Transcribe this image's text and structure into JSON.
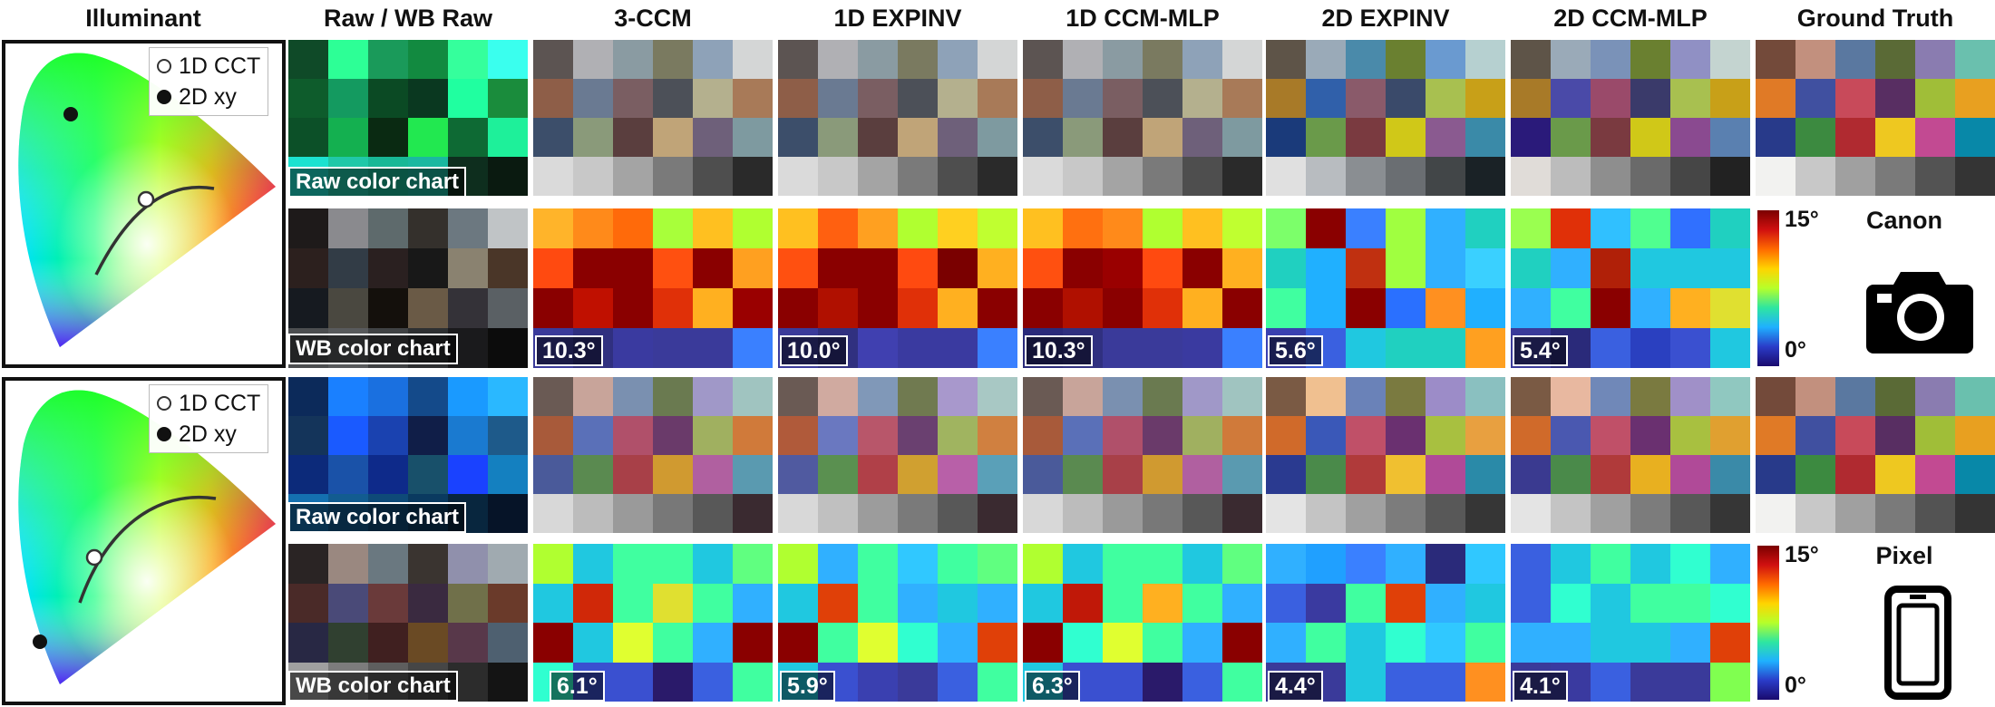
{
  "headers": [
    "Illuminant",
    "Raw / WB Raw",
    "3-CCM",
    "1D EXPINV",
    "1D CCM-MLP",
    "2D EXPINV",
    "2D CCM-MLP",
    "Ground Truth"
  ],
  "illuminant_legend": {
    "cct": "1D CCT",
    "xy": "2D xy"
  },
  "labels": {
    "raw": "Raw color chart",
    "wb": "WB color chart"
  },
  "colorbar": {
    "max": "15°",
    "min": "0°"
  },
  "cameras": [
    {
      "name": "Canon",
      "icon": "camera-icon",
      "errors": [
        "10.3°",
        "10.0°",
        "10.3°",
        "5.6°",
        "5.4°"
      ]
    },
    {
      "name": "Pixel",
      "icon": "smartphone-icon",
      "errors": [
        "6.1°",
        "5.9°",
        "6.3°",
        "4.4°",
        "4.1°"
      ]
    }
  ],
  "palettes": {
    "canon_raw": [
      "#0f4a28",
      "#2dff96",
      "#1a9a5a",
      "#128a40",
      "#35ff9c",
      "#3affee",
      "#0e5c2c",
      "#149a60",
      "#0b4a24",
      "#0a3820",
      "#20ffa0",
      "#1a8c3c",
      "#0c5028",
      "#14b050",
      "#0a2a12",
      "#22e850",
      "#0e6a34",
      "#1ef09a",
      "#1ce2d0",
      "#20c8a8",
      "#18b896",
      "#1ab8a0",
      "#0e2e1e",
      "#0a1a10"
    ],
    "canon_wb": [
      "#1e1a1a",
      "#8a8a8e",
      "#5e6a6c",
      "#34302c",
      "#6c7880",
      "#c0c4c6",
      "#2c201e",
      "#323c46",
      "#2a2020",
      "#181818",
      "#8a8270",
      "#4a3628",
      "#161a20",
      "#4a4840",
      "#14100c",
      "#6a5a46",
      "#343238",
      "#5a6064",
      "#4c4e50",
      "#585a5c",
      "#404244",
      "#2e3032",
      "#1a1a1c",
      "#0c0c0c"
    ],
    "canon_3ccm": [
      "#5c5452",
      "#b0b0b4",
      "#8a9ba2",
      "#7a7a60",
      "#8ea2b8",
      "#d4d6d6",
      "#8e5e48",
      "#6a7a92",
      "#7a5e62",
      "#4c5058",
      "#b4b08e",
      "#a87a58",
      "#3c4e6a",
      "#8a9a7a",
      "#5a3e3e",
      "#c0a478",
      "#6e607a",
      "#7e9aa0",
      "#dadada",
      "#c8c8c8",
      "#a4a4a4",
      "#7a7a7a",
      "#4e4e4e",
      "#2a2a2a"
    ],
    "canon_1dexp": [
      "#5c5452",
      "#b0b0b4",
      "#8a9ba2",
      "#7a7a60",
      "#8ea2b8",
      "#d4d6d6",
      "#8e5e48",
      "#6a7a92",
      "#7a5e62",
      "#4c5058",
      "#b4b08e",
      "#a87a58",
      "#3c4e6a",
      "#8a9a7a",
      "#5a3e3e",
      "#c0a478",
      "#6e607a",
      "#7e9aa0",
      "#dadada",
      "#c8c8c8",
      "#a4a4a4",
      "#7a7a7a",
      "#4e4e4e",
      "#2a2a2a"
    ],
    "canon_1dmlp": [
      "#5c5452",
      "#b0b0b4",
      "#8a9ba2",
      "#7a7a60",
      "#8ea2b8",
      "#d4d6d6",
      "#8e5e48",
      "#6a7a92",
      "#7a5e62",
      "#4c5058",
      "#b4b08e",
      "#a87a58",
      "#3c4e6a",
      "#8a9a7a",
      "#5a3e3e",
      "#c0a478",
      "#6e607a",
      "#7e9aa0",
      "#dadada",
      "#c8c8c8",
      "#a4a4a4",
      "#7a7a7a",
      "#4e4e4e",
      "#2a2a2a"
    ],
    "canon_2dexp": [
      "#5e5448",
      "#9aaab8",
      "#4a8aaa",
      "#6a8030",
      "#6a9ad0",
      "#b6d0d0",
      "#a87a28",
      "#3060aa",
      "#8a5a6a",
      "#3a4a6a",
      "#a8c050",
      "#c8a018",
      "#1a3a7a",
      "#6a9a4a",
      "#7a3a40",
      "#d0c818",
      "#8a5a90",
      "#3a8aa8",
      "#e0e0e0",
      "#b8bcc0",
      "#8a8e92",
      "#6a6e72",
      "#424648",
      "#1a2226"
    ],
    "canon_2dmlp": [
      "#5e5448",
      "#9aaab8",
      "#7a92b8",
      "#6a8030",
      "#9090c4",
      "#c4d4d0",
      "#a87a28",
      "#4a4aa8",
      "#9a4a6a",
      "#3a3a6a",
      "#a8c050",
      "#c8a018",
      "#2a1a7a",
      "#6a9a4a",
      "#7a3a40",
      "#d0c818",
      "#8a4a90",
      "#5a80b0",
      "#e0dcd8",
      "#bcbcbc",
      "#8e8e8e",
      "#6a6a6a",
      "#464646",
      "#222222"
    ],
    "canon_gt": [
      "#734a3a",
      "#c2907e",
      "#5a78a0",
      "#5a6a36",
      "#8a7cb0",
      "#6ac0ae",
      "#e07a26",
      "#4050a0",
      "#c84a5a",
      "#582e62",
      "#a0be38",
      "#e8a020",
      "#283a8a",
      "#3c8a40",
      "#b02a30",
      "#eec820",
      "#c24a92",
      "#0888a8",
      "#f2f2f0",
      "#c8c8c8",
      "#a0a0a0",
      "#7a7a7a",
      "#535353",
      "#343434"
    ],
    "canon_err_3ccm": [
      "#ffb42a",
      "#ff8a1a",
      "#ff6a0a",
      "#a8ff3a",
      "#ffc020",
      "#b0ff30",
      "#ff4a10",
      "#8a0000",
      "#8a0000",
      "#ff5010",
      "#8a0000",
      "#ffa020",
      "#8a0000",
      "#c01000",
      "#8a0000",
      "#e03008",
      "#ffb020",
      "#9a0000",
      "#3a3a9a",
      "#303080",
      "#3a3aa0",
      "#3a3a9a",
      "#3a3a9a",
      "#3a80ff"
    ],
    "canon_err_1dexp": [
      "#ffc020",
      "#ff6010",
      "#ffa020",
      "#b0ff30",
      "#ffd020",
      "#c0ff30",
      "#ff5010",
      "#8a0000",
      "#8a0000",
      "#ff4a10",
      "#7a0000",
      "#ffb020",
      "#8a0000",
      "#b01000",
      "#8a0000",
      "#e03008",
      "#ffb020",
      "#8a0000",
      "#3a3a9a",
      "#303080",
      "#4040b0",
      "#3a3aa0",
      "#3a3aa0",
      "#3a80ff"
    ],
    "canon_err_1dmlp": [
      "#ffc020",
      "#ff7010",
      "#ff8a1a",
      "#b0ff30",
      "#ffc020",
      "#c0ff30",
      "#ff5010",
      "#8a0000",
      "#9a0000",
      "#ff4a10",
      "#8a0000",
      "#ffb020",
      "#8a0000",
      "#b01000",
      "#8a0000",
      "#e03008",
      "#ffb020",
      "#8a0000",
      "#2a2a7a",
      "#303080",
      "#3a3a9a",
      "#3a3a9a",
      "#3a3aa0",
      "#3a80ff"
    ],
    "canon_err_2dexp": [
      "#7cff6a",
      "#8a0000",
      "#3a80ff",
      "#a0ff40",
      "#30b0ff",
      "#20d0c0",
      "#20d0c0",
      "#20b0ff",
      "#c03010",
      "#a0ff40",
      "#30b0ff",
      "#3ad0ff",
      "#40ffa0",
      "#20b0ff",
      "#8a0000",
      "#2a70ff",
      "#ff9020",
      "#20b0ff",
      "#3a40b0",
      "#3a60e0",
      "#20c8e0",
      "#20d0c0",
      "#20d0c0",
      "#ffa020"
    ],
    "canon_err_2dmlp": [
      "#9aff50",
      "#e03008",
      "#30c0ff",
      "#50ff90",
      "#3070ff",
      "#20d0c0",
      "#20d0c0",
      "#30b0ff",
      "#b02008",
      "#20c8e0",
      "#20c8e0",
      "#20c8e0",
      "#30b0ff",
      "#40ffa0",
      "#8a0000",
      "#30b0ff",
      "#ffb020",
      "#e0e030",
      "#3a3a9a",
      "#2a2a7a",
      "#3a60e0",
      "#2a40c0",
      "#3a50d0",
      "#20c8e0"
    ],
    "pixel_raw": [
      "#0c2a5a",
      "#1a80ff",
      "#1a70e0",
      "#144a8a",
      "#1a9aff",
      "#2ab8ff",
      "#14345a",
      "#1a5aff",
      "#1a42b0",
      "#101e48",
      "#1a7ad0",
      "#1e5a8a",
      "#0c2a7a",
      "#1a52a8",
      "#0e2a8a",
      "#18506a",
      "#1a42ff",
      "#1480c0",
      "#1470b0",
      "#125c90",
      "#0e4a78",
      "#0a3a60",
      "#08263e",
      "#061428"
    ],
    "pixel_wb": [
      "#2a2424",
      "#9a8880",
      "#6a7880",
      "#3a3430",
      "#9090ac",
      "#a0aab0",
      "#4a2a28",
      "#4a4a78",
      "#6a3a3a",
      "#3a2a40",
      "#70704a",
      "#6a3a2a",
      "#282844",
      "#304030",
      "#402020",
      "#6a4a24",
      "#58384a",
      "#4e6070",
      "#a0a0a0",
      "#7c7c7c",
      "#5e5e5e",
      "#464646",
      "#2c2c2c",
      "#141414"
    ],
    "pixel_3ccm": [
      "#6a5a54",
      "#c8a49a",
      "#7a90b0",
      "#6a7a50",
      "#a098c8",
      "#a0c4c0",
      "#a85a3a",
      "#5a70b8",
      "#b0506a",
      "#6a3a6a",
      "#a0b060",
      "#d07a3a",
      "#4a5a9a",
      "#5a8a50",
      "#a84048",
      "#d09a30",
      "#b060a0",
      "#5a9ab0",
      "#d8d8d8",
      "#bcbcbc",
      "#9a9a9a",
      "#787878",
      "#585858",
      "#3a2a30"
    ],
    "pixel_1dexp": [
      "#6a5a54",
      "#d0aaa0",
      "#8098b8",
      "#707a50",
      "#a898cc",
      "#a8c8c4",
      "#b05a3a",
      "#6a78c0",
      "#b8566a",
      "#6a4070",
      "#a0b460",
      "#d08040",
      "#505aa0",
      "#5a9050",
      "#b04048",
      "#d0a030",
      "#b860a8",
      "#5aa0b8",
      "#d8d8d8",
      "#c0c0c0",
      "#9c9c9c",
      "#7a7a7a",
      "#585858",
      "#3a2a30"
    ],
    "pixel_1dmlp": [
      "#6a5a54",
      "#c8a49a",
      "#7a90b0",
      "#6a7a50",
      "#a098c8",
      "#a0c4c0",
      "#a85a3a",
      "#5a70b8",
      "#b0506a",
      "#6a3a6a",
      "#a0b060",
      "#d07a3a",
      "#4a5a9a",
      "#5a8a50",
      "#a84048",
      "#d09a30",
      "#b060a0",
      "#5a9ab0",
      "#d8d8d8",
      "#bcbcbc",
      "#9a9a9a",
      "#787878",
      "#585858",
      "#3a2a30"
    ],
    "pixel_2dexp": [
      "#7a5a44",
      "#f0c090",
      "#6a82b8",
      "#7a7a40",
      "#9c8cc8",
      "#8ac0c0",
      "#d06a2a",
      "#3a58b8",
      "#c05068",
      "#6a3070",
      "#a8c040",
      "#e8a040",
      "#2a3a90",
      "#4a8a4a",
      "#b03a3a",
      "#f0c030",
      "#b04a98",
      "#2a8aa8",
      "#e4e4e4",
      "#c4c4c4",
      "#a0a0a0",
      "#7c7c7c",
      "#585858",
      "#363636"
    ],
    "pixel_2dmlp": [
      "#7a5a44",
      "#e8b8a0",
      "#7088b8",
      "#7a7a40",
      "#a090c8",
      "#90c8c0",
      "#d06a2a",
      "#4a58b0",
      "#c05068",
      "#6a3070",
      "#a8c040",
      "#e0a030",
      "#3a3a90",
      "#4a8a4a",
      "#b03a3a",
      "#e8b020",
      "#b04a98",
      "#3a8aa8",
      "#e4e4e4",
      "#c4c4c4",
      "#a0a0a0",
      "#7c7c7c",
      "#585858",
      "#363636"
    ],
    "pixel_gt": [
      "#734a3a",
      "#c2907e",
      "#5a78a0",
      "#5a6a36",
      "#8a7cb0",
      "#6ac0ae",
      "#e07a26",
      "#4050a0",
      "#c84a5a",
      "#582e62",
      "#a0be38",
      "#e8a020",
      "#283a8a",
      "#3c8a40",
      "#b02a30",
      "#eec820",
      "#c24a92",
      "#0888a8",
      "#f2f2f0",
      "#c8c8c8",
      "#a0a0a0",
      "#7a7a7a",
      "#535353",
      "#343434"
    ],
    "pixel_err_3ccm": [
      "#b0ff30",
      "#20c8e0",
      "#40ffa0",
      "#40ffa0",
      "#20c8e0",
      "#60ff80",
      "#20c8e0",
      "#d02808",
      "#40ffa0",
      "#e0e030",
      "#40ffa0",
      "#30b0ff",
      "#8a0000",
      "#20c8e0",
      "#e0ff30",
      "#40ffa0",
      "#30b0ff",
      "#8a0000",
      "#30ffd0",
      "#3a50d0",
      "#3a50d0",
      "#2a1a6a",
      "#3a60e0",
      "#40ffa0"
    ],
    "pixel_err_1dexp": [
      "#b0ff30",
      "#30b0ff",
      "#40ffa0",
      "#30c8ff",
      "#40ffa0",
      "#60ff80",
      "#20c8e0",
      "#e04008",
      "#40ffa0",
      "#30b0ff",
      "#20c8e0",
      "#30b0ff",
      "#8a0000",
      "#40ffa0",
      "#e0ff30",
      "#30ffd0",
      "#30b0ff",
      "#e04008",
      "#20c8e0",
      "#3a50d0",
      "#3a40b0",
      "#3a3a9a",
      "#3a60e0",
      "#40ffa0"
    ],
    "pixel_err_1dmlp": [
      "#b0ff30",
      "#20c8e0",
      "#40ffa0",
      "#40ffa0",
      "#20c8e0",
      "#60ff80",
      "#20c8e0",
      "#c01808",
      "#40ffa0",
      "#ffb020",
      "#40ffa0",
      "#30b0ff",
      "#8a0000",
      "#30ffd0",
      "#e0ff30",
      "#40ffa0",
      "#30b0ff",
      "#8a0000",
      "#20c8e0",
      "#3a50d0",
      "#3a50d0",
      "#2a1a6a",
      "#3a60e0",
      "#40ffa0"
    ],
    "pixel_err_2dexp": [
      "#30b0ff",
      "#20a0ff",
      "#3a80ff",
      "#30b0ff",
      "#2a2a7a",
      "#30c8ff",
      "#3a60e0",
      "#3a3aa0",
      "#40ffa0",
      "#e04008",
      "#30b0ff",
      "#20c8e0",
      "#30b0ff",
      "#40ffa0",
      "#20c8e0",
      "#30ffd0",
      "#30c8ff",
      "#40ffa0",
      "#3a3a9a",
      "#3a3a9a",
      "#20c8e0",
      "#3a60e0",
      "#3a60e0",
      "#ff9020"
    ],
    "pixel_err_2dmlp": [
      "#3a60e0",
      "#20c8e0",
      "#40ffa0",
      "#20c8e0",
      "#30ffd0",
      "#30b0ff",
      "#3a60e0",
      "#30ffd0",
      "#20c8e0",
      "#40ffa0",
      "#40ffa0",
      "#30ffd0",
      "#30b0ff",
      "#30b0ff",
      "#20c8e0",
      "#20c8e0",
      "#30b0ff",
      "#e04008",
      "#3a3a9a",
      "#3a3aa0",
      "#3a60e0",
      "#3a3a9a",
      "#3a3a9a",
      "#80ff50"
    ]
  }
}
